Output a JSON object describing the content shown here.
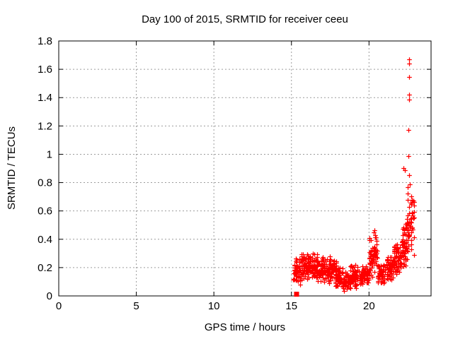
{
  "chart_data": {
    "type": "scatter",
    "title": "Day 100 of 2015, SRMTID for receiver ceeu",
    "xlabel": "GPS time / hours",
    "ylabel": "SRMTID / TECUs",
    "xlim": [
      0,
      24
    ],
    "ylim": [
      0,
      1.8
    ],
    "xticks": [
      {
        "v": 0,
        "label": "0"
      },
      {
        "v": 5,
        "label": "5"
      },
      {
        "v": 10,
        "label": "10"
      },
      {
        "v": 15,
        "label": "15"
      },
      {
        "v": 20,
        "label": "20"
      }
    ],
    "yticks": [
      {
        "v": 0,
        "label": "0"
      },
      {
        "v": 0.2,
        "label": "0.2"
      },
      {
        "v": 0.4,
        "label": "0.4"
      },
      {
        "v": 0.6,
        "label": "0.6"
      },
      {
        "v": 0.8,
        "label": "0.8"
      },
      {
        "v": 1,
        "label": "1"
      },
      {
        "v": 1.2,
        "label": "1.2"
      },
      {
        "v": 1.4,
        "label": "1.4"
      },
      {
        "v": 1.6,
        "label": "1.6"
      },
      {
        "v": 1.8,
        "label": "1.8"
      }
    ],
    "grid": true,
    "legend": "none",
    "marker": "plus",
    "colors": {
      "points": "#ff0000",
      "grid": "#9c9c9c",
      "axis": "#000000",
      "background": "#ffffff"
    },
    "seed": 1337,
    "start_marker": {
      "shape": "filled-square",
      "x": 15.33,
      "y": 0.012
    },
    "outlier_points": [
      [
        22.6,
        1.67
      ],
      [
        22.6,
        1.64
      ],
      [
        22.6,
        1.545
      ],
      [
        22.57,
        1.42
      ],
      [
        22.57,
        1.385
      ],
      [
        22.53,
        1.17
      ],
      [
        22.53,
        0.985
      ],
      [
        22.2,
        0.9
      ],
      [
        22.3,
        0.89
      ],
      [
        22.57,
        0.855
      ],
      [
        22.62,
        0.79
      ],
      [
        22.5,
        0.77
      ]
    ],
    "band_segments": [
      {
        "x0": 15.12,
        "x1": 15.6,
        "y_min": 0.07,
        "y_max": 0.3,
        "count": 55
      },
      {
        "x0": 15.6,
        "x1": 16.1,
        "y_min": 0.1,
        "y_max": 0.33,
        "count": 62
      },
      {
        "x0": 16.1,
        "x1": 16.7,
        "y_min": 0.1,
        "y_max": 0.32,
        "count": 72
      },
      {
        "x0": 16.7,
        "x1": 17.3,
        "y_min": 0.08,
        "y_max": 0.28,
        "count": 68
      },
      {
        "x0": 17.3,
        "x1": 17.8,
        "y_min": 0.08,
        "y_max": 0.3,
        "count": 60
      },
      {
        "x0": 17.8,
        "x1": 18.3,
        "y_min": 0.05,
        "y_max": 0.25,
        "count": 60
      },
      {
        "x0": 18.3,
        "x1": 18.8,
        "y_min": 0.03,
        "y_max": 0.17,
        "count": 55
      },
      {
        "x0": 18.8,
        "x1": 19.5,
        "y_min": 0.05,
        "y_max": 0.24,
        "count": 78
      },
      {
        "x0": 19.5,
        "x1": 20.0,
        "y_min": 0.07,
        "y_max": 0.22,
        "count": 58
      },
      {
        "x0": 20.0,
        "x1": 20.3,
        "y_min": 0.1,
        "y_max": 0.45,
        "count": 38
      },
      {
        "x0": 20.3,
        "x1": 20.55,
        "y_min": 0.15,
        "y_max": 0.5,
        "count": 32
      },
      {
        "x0": 20.55,
        "x1": 21.1,
        "y_min": 0.07,
        "y_max": 0.24,
        "count": 62
      },
      {
        "x0": 21.1,
        "x1": 21.6,
        "y_min": 0.1,
        "y_max": 0.3,
        "count": 60
      },
      {
        "x0": 21.6,
        "x1": 22.1,
        "y_min": 0.13,
        "y_max": 0.4,
        "count": 62
      },
      {
        "x0": 22.1,
        "x1": 22.5,
        "y_min": 0.18,
        "y_max": 0.55,
        "count": 58
      },
      {
        "x0": 22.45,
        "x1": 22.95,
        "y_min": 0.25,
        "y_max": 0.78,
        "count": 50
      }
    ]
  }
}
